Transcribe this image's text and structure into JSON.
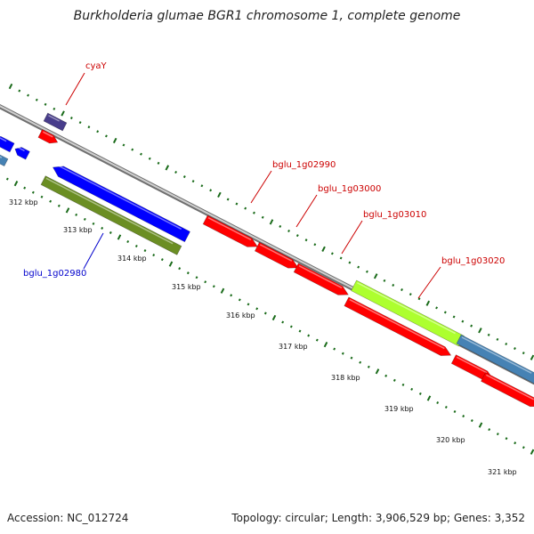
{
  "title": "Burkholderia glumae BGR1 chromosome 1, complete genome",
  "accession_text": "Accession: NC_012724",
  "summary_text": "Topology: circular; Length: 3,906,529 bp; Genes: 3,352",
  "ticks": [
    "312 kbp",
    "313 kbp",
    "314 kbp",
    "315 kbp",
    "316 kbp",
    "317 kbp",
    "318 kbp",
    "319 kbp",
    "320 kbp",
    "321 kbp"
  ],
  "genes": [
    {
      "label": "cyaY",
      "label_color": "#cc0000",
      "color": "#ff0000",
      "strand": "forward"
    },
    {
      "label": "bglu_1g02980",
      "label_color": "#0000cc",
      "color": "#0000ff",
      "strand": "reverse"
    },
    {
      "label": "bglu_1g02990",
      "label_color": "#cc0000",
      "color": "#ff0000",
      "strand": "forward"
    },
    {
      "label": "bglu_1g03000",
      "label_color": "#cc0000",
      "color": "#ff0000",
      "strand": "forward"
    },
    {
      "label": "bglu_1g03010",
      "label_color": "#cc0000",
      "color": "#ff0000",
      "strand": "forward"
    },
    {
      "label": "bglu_1g03020",
      "label_color": "#cc0000",
      "color": "#9acd32",
      "strand": "forward"
    }
  ],
  "colors": {
    "backbone": "#8c8c8c",
    "tick": "#1a6b1a",
    "cds_forward": "#ff0000",
    "cds_reverse": "#0000ff",
    "feature_olive": "#6b8e23",
    "feature_lime": "#adff2f",
    "feature_steel": "#4682b4",
    "feature_purple": "#483d8b"
  }
}
